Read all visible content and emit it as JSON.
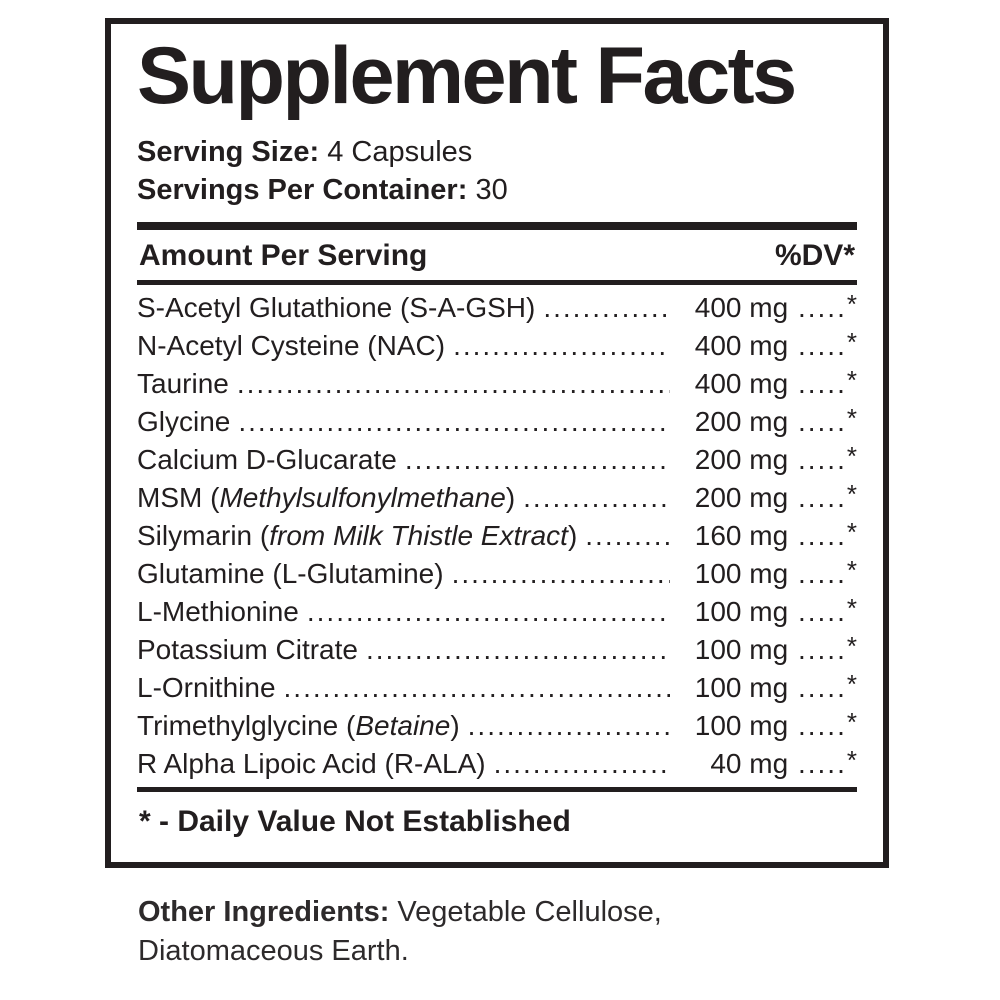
{
  "panel": {
    "title": "Supplement Facts",
    "serving_size_label": "Serving Size:",
    "serving_size_value": "4 Capsules",
    "servings_per_container_label": "Servings Per Container:",
    "servings_per_container_value": "30",
    "header": {
      "amount_label": "Amount Per Serving",
      "dv_label": "%DV*"
    },
    "tail_dots": ".....",
    "rows": [
      {
        "pre": "S-Acetyl Glutathione (S-A-GSH)",
        "italic": "",
        "suffix": "",
        "amount": "400 mg",
        "dv": "*"
      },
      {
        "pre": "N-Acetyl Cysteine (NAC)",
        "italic": "",
        "suffix": "",
        "amount": "400 mg",
        "dv": "*"
      },
      {
        "pre": "Taurine",
        "italic": "",
        "suffix": "",
        "amount": "400 mg",
        "dv": "*"
      },
      {
        "pre": "Glycine",
        "italic": "",
        "suffix": "",
        "amount": "200 mg",
        "dv": "*"
      },
      {
        "pre": "Calcium D-Glucarate",
        "italic": "",
        "suffix": "",
        "amount": "200 mg",
        "dv": "*"
      },
      {
        "pre": "MSM (",
        "italic": "Methylsulfonylmethane",
        "suffix": ")",
        "amount": "200 mg",
        "dv": "*"
      },
      {
        "pre": "Silymarin (",
        "italic": "from Milk Thistle Extract",
        "suffix": ")",
        "amount": "160 mg",
        "dv": "*"
      },
      {
        "pre": "Glutamine (L-Glutamine)",
        "italic": "",
        "suffix": "",
        "amount": "100 mg",
        "dv": "*"
      },
      {
        "pre": "L-Methionine",
        "italic": "",
        "suffix": "",
        "amount": "100 mg",
        "dv": "*"
      },
      {
        "pre": "Potassium Citrate",
        "italic": "",
        "suffix": "",
        "amount": "100 mg",
        "dv": "*"
      },
      {
        "pre": "L-Ornithine",
        "italic": "",
        "suffix": "",
        "amount": "100 mg",
        "dv": "*"
      },
      {
        "pre": "Trimethylglycine (",
        "italic": "Betaine",
        "suffix": ")",
        "amount": "100 mg",
        "dv": "*"
      },
      {
        "pre": "R Alpha Lipoic Acid (R-ALA)",
        "italic": "",
        "suffix": "",
        "amount": "40 mg",
        "dv": "*"
      }
    ],
    "footnote": "* - Daily Value Not Established"
  },
  "other_ingredients": {
    "label": "Other Ingredients:",
    "text": " Vegetable Cellulose, Diatomaceous Earth."
  },
  "colors": {
    "ink": "#221e1f",
    "background": "#ffffff"
  }
}
